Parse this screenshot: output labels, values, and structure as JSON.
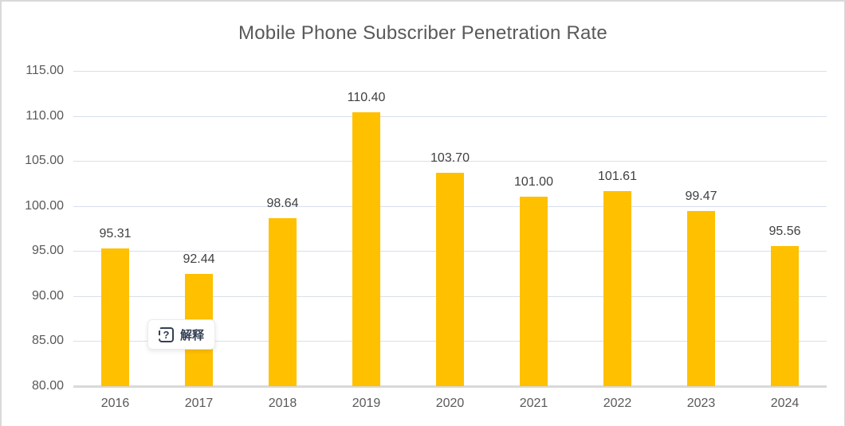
{
  "colors": {
    "bar": "#FFC000",
    "gridline": "#D8E0EB",
    "axis_line": "#D9D9D9",
    "title_text": "#595959",
    "axis_text": "#595959",
    "data_label_text": "#404040",
    "chart_border": "#D9D9D9",
    "explain_text": "#333F54"
  },
  "explain_button": {
    "label": "解释",
    "icon": "question-box-icon",
    "icon_glyph": "?"
  },
  "chart_data": {
    "type": "bar",
    "title": "Mobile Phone Subscriber Penetration Rate",
    "categories": [
      "2016",
      "2017",
      "2018",
      "2019",
      "2020",
      "2021",
      "2022",
      "2023",
      "2024"
    ],
    "values": [
      95.31,
      92.44,
      98.64,
      110.4,
      103.7,
      101.0,
      101.61,
      99.47,
      95.56
    ],
    "data_labels": [
      "95.31",
      "92.44",
      "98.64",
      "110.40",
      "103.70",
      "101.00",
      "101.61",
      "99.47",
      "95.56"
    ],
    "xlabel": "",
    "ylabel": "",
    "ylim": [
      80,
      115
    ],
    "ytick_step": 5,
    "yticks": [
      "115.00",
      "110.00",
      "105.00",
      "100.00",
      "95.00",
      "90.00",
      "85.00",
      "80.00"
    ],
    "grid": true,
    "legend": "none",
    "bar_color": "#FFC000"
  }
}
